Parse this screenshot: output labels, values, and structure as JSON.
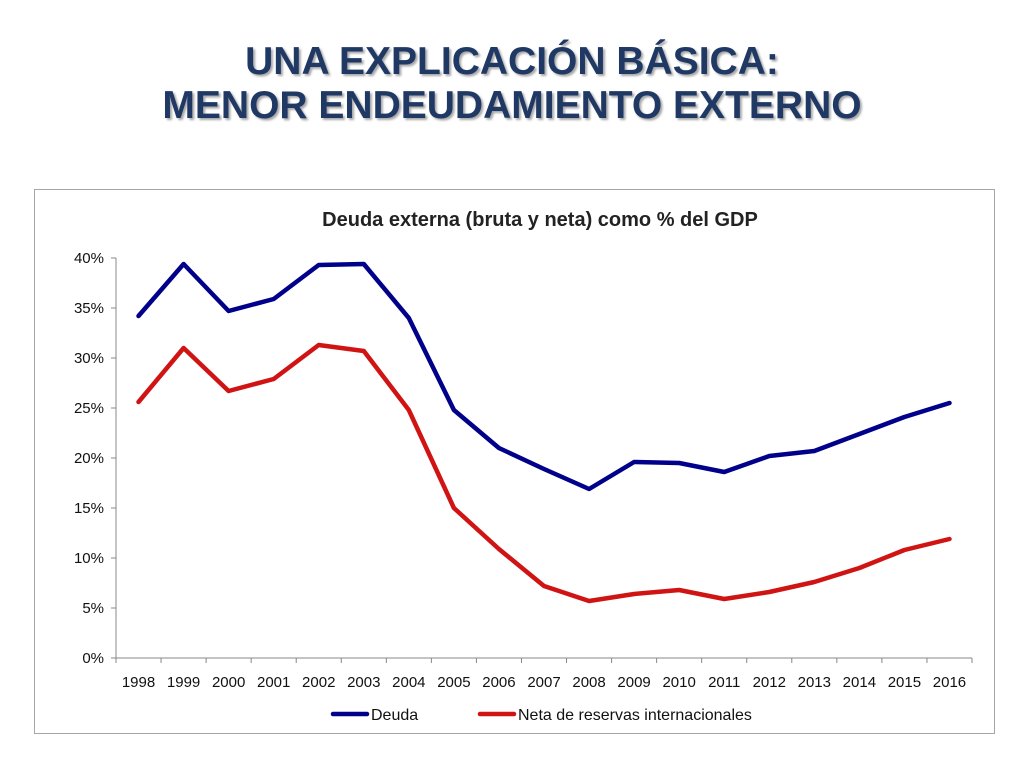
{
  "slide": {
    "title_line1": "UNA EXPLICACIÓN BÁSICA:",
    "title_line2": "MENOR ENDEUDAMIENTO EXTERNO",
    "title_color": "#1f3864"
  },
  "chart_data": {
    "type": "line",
    "title": "Deuda externa (bruta y neta) como % del GDP",
    "xlabel": "",
    "ylabel": "",
    "x": [
      "1998",
      "1999",
      "2000",
      "2001",
      "2002",
      "2003",
      "2004",
      "2005",
      "2006",
      "2007",
      "2008",
      "2009",
      "2010",
      "2011",
      "2012",
      "2013",
      "2014",
      "2015",
      "2016"
    ],
    "ylim": [
      0,
      40
    ],
    "yticks": [
      "0%",
      "5%",
      "10%",
      "15%",
      "20%",
      "25%",
      "30%",
      "35%",
      "40%"
    ],
    "grid": false,
    "legend": "bottom",
    "series": [
      {
        "name": "Deuda",
        "color": "#00008b",
        "values": [
          34.2,
          39.4,
          34.7,
          35.9,
          39.3,
          39.4,
          34.0,
          24.8,
          21.0,
          18.9,
          16.9,
          19.6,
          19.5,
          18.6,
          20.2,
          20.7,
          22.4,
          24.1,
          25.5
        ]
      },
      {
        "name": "Neta de reservas internacionales",
        "color": "#d01414",
        "values": [
          25.6,
          31.0,
          26.7,
          27.9,
          31.3,
          30.7,
          24.8,
          15.0,
          10.9,
          7.2,
          5.7,
          6.4,
          6.8,
          5.9,
          6.6,
          7.6,
          9.0,
          10.8,
          11.9
        ]
      }
    ]
  }
}
